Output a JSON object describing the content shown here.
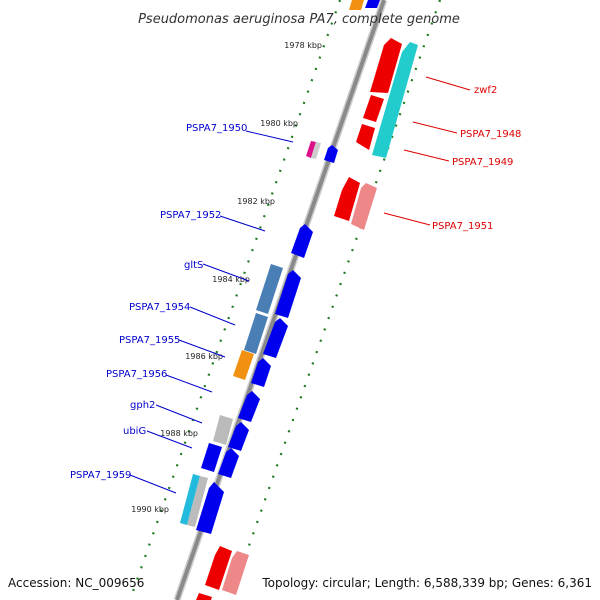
{
  "title": "Pseudomonas aeruginosa PA7, complete genome",
  "accession_text": "Accession: NC_009656",
  "topology_text": "Topology: circular; Length: 6,588,339 bp; Genes: 6,361",
  "colors": {
    "label_forward": "#0000cc",
    "label_reverse": "#dd0000",
    "backbone": "#8a8a8a",
    "tick": "#1f7a1f"
  },
  "ticks": [
    "1978 kbp",
    "1980 kbp",
    "1982 kbp",
    "1984 kbp",
    "1986 kbp",
    "1988 kbp",
    "1990 kbp"
  ],
  "forward_labels": [
    "PSPA7_1950",
    "PSPA7_1952",
    "gltS",
    "PSPA7_1954",
    "PSPA7_1955",
    "PSPA7_1956",
    "gph2",
    "ubiG",
    "PSPA7_1959"
  ],
  "reverse_labels": [
    "zwf2",
    "PSPA7_1948",
    "PSPA7_1949",
    "PSPA7_1951"
  ]
}
